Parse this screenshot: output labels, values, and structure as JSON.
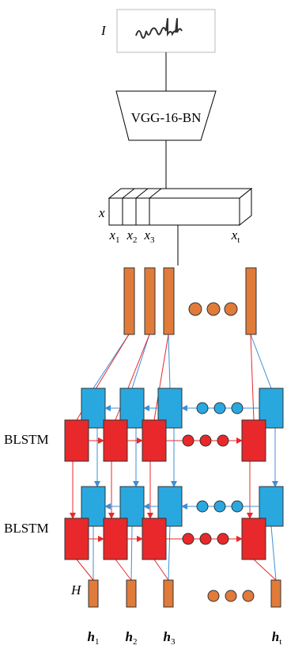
{
  "input": {
    "label": "I"
  },
  "encoder": {
    "label": "VGG-16-BN"
  },
  "features": {
    "label": "x",
    "slices": [
      {
        "symbol": "x",
        "sub": "1"
      },
      {
        "symbol": "x",
        "sub": "2"
      },
      {
        "symbol": "x",
        "sub": "3"
      },
      {
        "symbol": "x",
        "sub": "t"
      }
    ]
  },
  "layers": [
    {
      "label": "BLSTM"
    },
    {
      "label": "BLSTM"
    }
  ],
  "output": {
    "label": "H",
    "states": [
      {
        "symbol": "h",
        "sub": "1"
      },
      {
        "symbol": "h",
        "sub": "2"
      },
      {
        "symbol": "h",
        "sub": "3"
      },
      {
        "symbol": "h",
        "sub": "t"
      }
    ]
  }
}
